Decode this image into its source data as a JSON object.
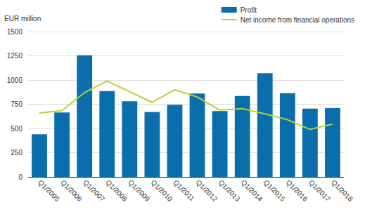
{
  "chart_data": {
    "type": "bar",
    "y_label": "EUR million",
    "categories": [
      "Q1/2005",
      "Q1/2006",
      "Q1/2007",
      "Q1/2008",
      "Q1/2009",
      "Q1/2010",
      "Q1/2011",
      "Q1/2012",
      "Q1/2013",
      "Q1/2014",
      "Q1/2015",
      "Q1/2016",
      "Q1/2017",
      "Q1/2018"
    ],
    "series": [
      {
        "name": "Profit",
        "type": "bar",
        "color": "#0a6ead",
        "values": [
          440,
          665,
          1255,
          885,
          780,
          670,
          745,
          860,
          680,
          835,
          1070,
          865,
          705,
          710
        ]
      },
      {
        "name": "Net income from financial operations",
        "type": "line",
        "color": "#b5d334",
        "values": [
          660,
          685,
          870,
          990,
          880,
          770,
          900,
          825,
          690,
          705,
          650,
          590,
          490,
          545
        ]
      }
    ],
    "ylim": [
      0,
      1500
    ],
    "yticks": [
      0,
      250,
      500,
      750,
      1000,
      1250,
      1500
    ],
    "grid": true,
    "legend": "top-right"
  }
}
